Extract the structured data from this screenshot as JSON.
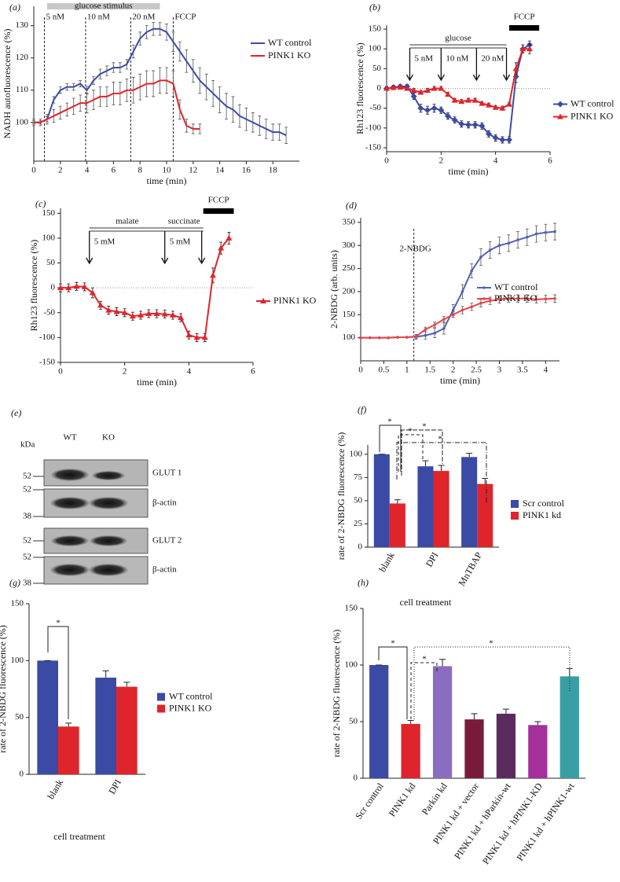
{
  "chart_data": [
    {
      "type": "line",
      "panel": "(a)",
      "xlabel": "time (min)",
      "ylabel": "NADH  autofluorescence (%)",
      "xlim": [
        0,
        20
      ],
      "ylim": [
        88,
        136
      ],
      "xticks": [
        0,
        2,
        4,
        6,
        8,
        10,
        12,
        14,
        16,
        18
      ],
      "yticks": [
        100,
        110,
        120,
        130
      ],
      "legend": "upper right",
      "series": [
        {
          "name": "WT control",
          "color": "#3d4ba6",
          "marker": "none",
          "x": [
            0,
            0.5,
            1,
            1.5,
            2,
            2.5,
            3,
            3.5,
            4,
            4.5,
            5,
            5.5,
            6,
            6.5,
            7,
            7.5,
            8,
            8.5,
            9,
            9.5,
            10,
            10.5,
            11,
            11.5,
            12,
            12.5,
            13,
            13.5,
            14,
            14.5,
            15,
            15.5,
            16,
            16.5,
            17,
            17.5,
            18,
            18.5,
            19
          ],
          "values": [
            100,
            100,
            101,
            107,
            110,
            111,
            111,
            112,
            110,
            113,
            115,
            116,
            117,
            117,
            118,
            122,
            126,
            128,
            129,
            129,
            128,
            125,
            122,
            119,
            116,
            113,
            111,
            109,
            107,
            105,
            104,
            102,
            101,
            100,
            99,
            98,
            97,
            97,
            96
          ],
          "errors": [
            0.5,
            0.5,
            0.8,
            1,
            1,
            1,
            1,
            1,
            1.2,
            1.2,
            1.5,
            1.5,
            1.5,
            1.5,
            1.5,
            2,
            2,
            2,
            2,
            2,
            2.5,
            3,
            3,
            3.5,
            3.5,
            4,
            4,
            4,
            4,
            4,
            4,
            3.5,
            3.5,
            3,
            3,
            3,
            2.5,
            2.5,
            2.5
          ]
        },
        {
          "name": "PINK1 KO",
          "color": "#e0242b",
          "marker": "none",
          "x": [
            0,
            0.5,
            1,
            1.5,
            2,
            2.5,
            3,
            3.5,
            4,
            4.5,
            5,
            5.5,
            6,
            6.5,
            7,
            7.5,
            8,
            8.5,
            9,
            9.5,
            10,
            10.5,
            11,
            11.5,
            12,
            12.5
          ],
          "values": [
            100,
            100,
            101,
            102,
            103,
            104,
            105,
            106,
            106,
            107,
            108,
            108,
            109,
            109,
            110,
            110,
            111,
            112,
            112,
            113,
            113,
            112,
            104,
            99,
            98,
            98
          ],
          "errors": [
            1,
            1,
            1.5,
            2,
            2,
            2,
            2.5,
            2.5,
            3,
            3,
            3,
            3,
            3.5,
            3.5,
            3.5,
            4,
            4,
            4,
            4,
            4,
            4,
            4,
            3,
            2,
            1.5,
            1.5
          ]
        }
      ],
      "bars": [
        {
          "label": "glucose stimulus",
          "x": [
            1,
            9.5
          ],
          "style": "gray"
        }
      ],
      "events": [
        {
          "label": "5 nM",
          "x": 0.8,
          "style": "dashed"
        },
        {
          "label": "10 nM",
          "x": 3.9,
          "style": "dashed"
        },
        {
          "label": "20 nM",
          "x": 7.3,
          "style": "dashed"
        },
        {
          "label": "FCCP",
          "x": 10.5,
          "style": "dashed"
        }
      ]
    },
    {
      "type": "line",
      "panel": "(b)",
      "xlabel": "time (min)",
      "ylabel": "Rh123 fluorescence (%)",
      "xlim": [
        0,
        6
      ],
      "ylim": [
        -160,
        160
      ],
      "xticks": [
        0,
        2,
        4,
        6
      ],
      "yticks": [
        150,
        100,
        50,
        0,
        -50,
        -100,
        -150
      ],
      "legend": "right",
      "zero_line": true,
      "series": [
        {
          "name": "WT control",
          "color": "#3d4ba6",
          "marker": "diamond",
          "x": [
            0,
            0.25,
            0.5,
            0.75,
            1,
            1.25,
            1.5,
            1.75,
            2,
            2.25,
            2.5,
            2.75,
            3,
            3.25,
            3.5,
            3.75,
            4,
            4.25,
            4.5,
            4.75,
            5,
            5.25
          ],
          "values": [
            0,
            3,
            5,
            5,
            -20,
            -50,
            -55,
            -50,
            -55,
            -70,
            -80,
            -90,
            -92,
            -92,
            -95,
            -115,
            -125,
            -130,
            -130,
            30,
            100,
            110
          ],
          "errors": [
            5,
            5,
            5,
            5,
            8,
            10,
            10,
            10,
            8,
            8,
            8,
            8,
            8,
            8,
            8,
            8,
            8,
            8,
            8,
            15,
            10,
            10
          ]
        },
        {
          "name": "PINK1 KO",
          "color": "#e0242b",
          "marker": "triangle",
          "x": [
            0,
            0.25,
            0.5,
            0.75,
            1,
            1.25,
            1.5,
            1.75,
            2,
            2.25,
            2.5,
            2.75,
            3,
            3.25,
            3.5,
            3.75,
            4,
            4.25,
            4.5,
            4.75,
            5,
            5.25
          ],
          "values": [
            0,
            2,
            3,
            0,
            -5,
            -10,
            -5,
            0,
            0,
            -15,
            -30,
            -33,
            -30,
            -30,
            -38,
            -42,
            -48,
            -50,
            -40,
            50,
            100,
            100
          ],
          "errors": [
            4,
            4,
            4,
            4,
            5,
            5,
            5,
            5,
            5,
            5,
            5,
            5,
            5,
            5,
            5,
            5,
            5,
            5,
            5,
            15,
            10,
            12
          ]
        }
      ],
      "bars": [
        {
          "label": "glucose",
          "x": [
            0.85,
            4.4
          ],
          "style": "double"
        },
        {
          "label": "FCCP",
          "x": [
            4.5,
            5.6
          ],
          "style": "black"
        }
      ],
      "events": [
        {
          "label": "5 nM",
          "x": 0.85,
          "style": "arrow"
        },
        {
          "label": "10 nM",
          "x": 2,
          "style": "arrow"
        },
        {
          "label": "20 nM",
          "x": 3.3,
          "style": "arrow"
        },
        {
          "x": 4.4,
          "style": "arrow"
        }
      ]
    },
    {
      "type": "line",
      "panel": "(c)",
      "xlabel": "time (min)",
      "ylabel": "Rh123 fluorescence (%)",
      "xlim": [
        0,
        6
      ],
      "ylim": [
        -150,
        160
      ],
      "xticks": [
        0,
        2,
        4,
        6
      ],
      "yticks": [
        150,
        100,
        50,
        0,
        -50,
        -100,
        -150
      ],
      "legend": "right",
      "zero_line": true,
      "series": [
        {
          "name": "PINK1 KO",
          "color": "#e0242b",
          "marker": "triangle",
          "x": [
            0,
            0.25,
            0.5,
            0.75,
            1,
            1.25,
            1.5,
            1.75,
            2,
            2.25,
            2.5,
            2.75,
            3,
            3.25,
            3.5,
            3.75,
            4,
            4.25,
            4.5,
            4.75,
            5,
            5.25
          ],
          "values": [
            0,
            0,
            3,
            2,
            -10,
            -35,
            -45,
            -48,
            -50,
            -57,
            -55,
            -52,
            -52,
            -53,
            -55,
            -60,
            -95,
            -100,
            -100,
            25,
            80,
            100
          ],
          "errors": [
            8,
            8,
            8,
            8,
            10,
            8,
            8,
            8,
            8,
            8,
            8,
            8,
            8,
            8,
            8,
            8,
            8,
            8,
            8,
            15,
            12,
            12
          ]
        }
      ],
      "bars": [
        {
          "label": "malate",
          "x": [
            0.9,
            3.25
          ],
          "style": "double"
        },
        {
          "label": "succinate",
          "x": [
            3.25,
            4.45
          ],
          "style": "double"
        },
        {
          "label": "FCCP",
          "x": [
            4.45,
            5.4
          ],
          "style": "black"
        }
      ],
      "events": [
        {
          "label": "5 mM",
          "x": 0.9,
          "style": "arrow"
        },
        {
          "label": "5 mM",
          "x": 3.25,
          "style": "arrow"
        },
        {
          "x": 4.4,
          "style": "arrow"
        }
      ]
    },
    {
      "type": "line",
      "panel": "(d)",
      "xlabel": "time (min)",
      "ylabel": "2-NBDG (arb. units)",
      "xlim": [
        0,
        4.3
      ],
      "ylim": [
        50,
        360
      ],
      "xticks": [
        0,
        0.5,
        1,
        1.5,
        2,
        2.5,
        3,
        3.5,
        4
      ],
      "yticks": [
        100,
        150,
        200,
        250,
        300,
        350
      ],
      "legend": "center right",
      "series": [
        {
          "name": "WT control",
          "color": "#5560b5",
          "marker": "circle",
          "x": [
            0,
            0.2,
            0.4,
            0.6,
            0.8,
            1,
            1.2,
            1.4,
            1.6,
            1.8,
            2,
            2.2,
            2.4,
            2.6,
            2.8,
            3,
            3.2,
            3.4,
            3.6,
            3.8,
            4,
            4.2
          ],
          "values": [
            100,
            100,
            100,
            100,
            101,
            101,
            102,
            105,
            110,
            120,
            160,
            200,
            245,
            275,
            290,
            300,
            305,
            312,
            318,
            325,
            328,
            330
          ],
          "errors": [
            1,
            1,
            1,
            1,
            1,
            1,
            5,
            8,
            10,
            12,
            12,
            15,
            15,
            18,
            18,
            18,
            18,
            18,
            18,
            18,
            18,
            18
          ]
        },
        {
          "name": "PINK1 KO",
          "color": "#e8454a",
          "marker": "circle",
          "x": [
            0,
            0.2,
            0.4,
            0.6,
            0.8,
            1,
            1.2,
            1.4,
            1.6,
            1.8,
            2,
            2.2,
            2.4,
            2.6,
            2.8,
            3,
            3.2,
            3.4,
            3.6,
            3.8,
            4,
            4.2
          ],
          "values": [
            100,
            100,
            100,
            100,
            101,
            101,
            103,
            118,
            128,
            140,
            150,
            160,
            167,
            175,
            180,
            183,
            185,
            185,
            185,
            183,
            184,
            185
          ],
          "errors": [
            1,
            1,
            1,
            1,
            1,
            1,
            4,
            5,
            6,
            6,
            6,
            8,
            8,
            8,
            8,
            8,
            8,
            8,
            8,
            8,
            8,
            8
          ]
        }
      ],
      "events": [
        {
          "label": "2-NBDG",
          "x": 1.15,
          "style": "dashed"
        }
      ]
    },
    {
      "type": "bar",
      "panel": "(f)",
      "xlabel": "cell treatment",
      "ylabel": "rate of 2-NBDG fluorescence (%)",
      "ylim": [
        0,
        110
      ],
      "yticks": [
        0,
        25,
        50,
        75,
        100
      ],
      "legend": "right",
      "categories": [
        "blank",
        "DPI",
        "MnTBAP"
      ],
      "series": [
        {
          "name": "Scr control",
          "color": "#3a4aa5",
          "values": [
            100,
            87,
            97
          ],
          "errors": [
            0,
            6,
            4
          ]
        },
        {
          "name": "PINK1 kd",
          "color": "#e0242b",
          "values": [
            47,
            82,
            68
          ],
          "errors": [
            4,
            6,
            6
          ]
        }
      ],
      "significance": [
        "*",
        "*",
        "*",
        "*"
      ]
    },
    {
      "type": "bar",
      "panel": "(g)",
      "xlabel": "cell treatment",
      "ylabel": "rate of 2-NBDG fluorescence (%)",
      "ylim": [
        0,
        150
      ],
      "yticks": [
        0,
        50,
        100,
        150
      ],
      "legend": "right",
      "categories": [
        "blank",
        "DPI"
      ],
      "series": [
        {
          "name": "WT control",
          "color": "#3a4aa5",
          "values": [
            100,
            85
          ],
          "errors": [
            0,
            6
          ]
        },
        {
          "name": "PINK1 KO",
          "color": "#e0242b",
          "values": [
            42,
            77
          ],
          "errors": [
            3,
            4
          ]
        }
      ],
      "significance": [
        "*"
      ]
    },
    {
      "type": "bar",
      "panel": "(h)",
      "ylabel": "rate of 2-NBDG fluorescence (%)",
      "ylim": [
        0,
        150
      ],
      "yticks": [
        0,
        50,
        100,
        150
      ],
      "categories": [
        "Scr control",
        "PINK1 kd",
        "Parkin kd",
        "PINK1 kd + vector",
        "PINK1 kd + hParkin-wt",
        "PINK1 kd + hPINK1-KD",
        "PINK1 kd + hPINK1-wt"
      ],
      "series": [
        {
          "colors": [
            "#3a4aa5",
            "#e0242b",
            "#8a6cc0",
            "#7a1a3a",
            "#5b2a5e",
            "#a4309a",
            "#3a9ea5"
          ],
          "values": [
            100,
            48,
            99,
            52,
            57,
            47,
            90
          ],
          "errors": [
            0,
            3,
            6,
            5,
            4,
            3,
            7
          ]
        }
      ],
      "significance": [
        "*",
        "*",
        "*"
      ]
    }
  ],
  "blot": {
    "panel": "(e)",
    "unit": "kDa",
    "lanes": [
      "WT",
      "KO"
    ],
    "rows": [
      {
        "label": "GLUT 1",
        "markers": [
          "52"
        ]
      },
      {
        "label": "β-actin",
        "markers": [
          "52",
          "38"
        ]
      },
      {
        "label": "GLUT 2",
        "markers": [
          "52"
        ]
      },
      {
        "label": "β-actin",
        "markers": [
          "52",
          "38"
        ]
      }
    ]
  }
}
